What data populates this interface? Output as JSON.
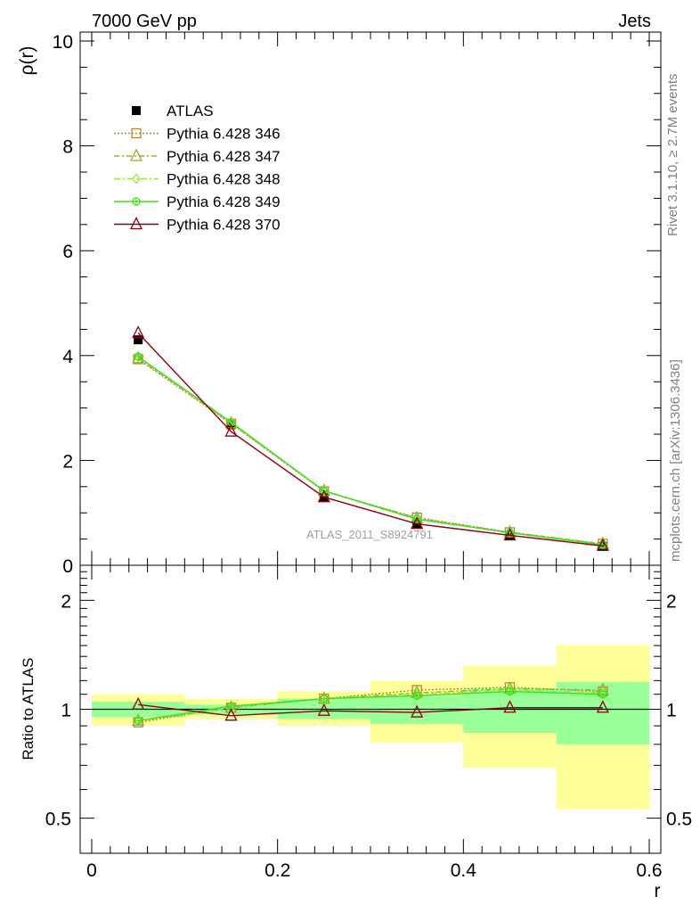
{
  "header": {
    "energy_label": "7000 GeV pp",
    "process_label": "Jets",
    "side_label_rivet": "Rivet 3.1.10, ≥ 2.7M events",
    "side_label_mcplots": "mcplots.cern.ch [arXiv:1306.3436]",
    "analysis_id": "ATLAS_2011_S8924791"
  },
  "colors": {
    "atlas": "#000000",
    "p346": "#b8853a",
    "p347": "#8db32a",
    "p348": "#9be43a",
    "p349": "#3de01c",
    "p370": "#8b0010",
    "band_inner": "#99ff99",
    "band_outer": "#ffff99"
  },
  "chart_data": [
    {
      "type": "line",
      "panel": "main",
      "xlabel": "",
      "ylabel": "ρ(r)",
      "xlim": [
        0,
        0.6
      ],
      "ylim": [
        0,
        10
      ],
      "yticks": [
        "0",
        "2",
        "4",
        "6",
        "8",
        "10"
      ],
      "legend_position": "top-left",
      "x": [
        0.05,
        0.15,
        0.25,
        0.35,
        0.45,
        0.55
      ],
      "series": [
        {
          "name": "ATLAS",
          "key": "atlas",
          "values": [
            4.3,
            2.68,
            1.29,
            0.8,
            0.56,
            0.36
          ]
        },
        {
          "name": "Pythia 6.428 346",
          "key": "p346",
          "values": [
            3.93,
            2.7,
            1.41,
            0.91,
            0.63,
            0.41
          ]
        },
        {
          "name": "Pythia 6.428 347",
          "key": "p347",
          "values": [
            3.95,
            2.71,
            1.42,
            0.9,
            0.63,
            0.41
          ]
        },
        {
          "name": "Pythia 6.428 348",
          "key": "p348",
          "values": [
            3.97,
            2.72,
            1.42,
            0.89,
            0.62,
            0.4
          ]
        },
        {
          "name": "Pythia 6.428 349",
          "key": "p349",
          "values": [
            3.98,
            2.73,
            1.42,
            0.88,
            0.62,
            0.39
          ]
        },
        {
          "name": "Pythia 6.428 370",
          "key": "p370",
          "values": [
            4.43,
            2.55,
            1.3,
            0.79,
            0.57,
            0.37
          ]
        }
      ]
    },
    {
      "type": "line",
      "panel": "ratio",
      "xlabel": "r",
      "ylabel": "Ratio to ATLAS",
      "xlim": [
        0,
        0.6
      ],
      "ylim": [
        0.4,
        2.5
      ],
      "log_y": true,
      "xticks": [
        "0",
        "0.2",
        "0.4",
        "0.6"
      ],
      "yticks": [
        "0.5",
        "1",
        "2"
      ],
      "x": [
        0.05,
        0.15,
        0.25,
        0.35,
        0.45,
        0.55
      ],
      "bands": [
        {
          "x_low": 0.0,
          "x_high": 0.1,
          "inner": [
            0.95,
            1.05
          ],
          "outer": [
            0.9,
            1.1
          ]
        },
        {
          "x_low": 0.1,
          "x_high": 0.2,
          "inner": [
            0.97,
            1.03
          ],
          "outer": [
            0.94,
            1.07
          ]
        },
        {
          "x_low": 0.2,
          "x_high": 0.3,
          "inner": [
            0.94,
            1.07
          ],
          "outer": [
            0.9,
            1.12
          ]
        },
        {
          "x_low": 0.3,
          "x_high": 0.4,
          "inner": [
            0.91,
            1.09
          ],
          "outer": [
            0.81,
            1.2
          ]
        },
        {
          "x_low": 0.4,
          "x_high": 0.5,
          "inner": [
            0.86,
            1.14
          ],
          "outer": [
            0.69,
            1.32
          ]
        },
        {
          "x_low": 0.5,
          "x_high": 0.6,
          "inner": [
            0.8,
            1.19
          ],
          "outer": [
            0.53,
            1.5
          ]
        }
      ],
      "series": [
        {
          "name": "Pythia 6.428 346",
          "key": "p346",
          "values": [
            0.92,
            1.01,
            1.07,
            1.13,
            1.15,
            1.12
          ]
        },
        {
          "name": "Pythia 6.428 347",
          "key": "p347",
          "values": [
            0.93,
            1.01,
            1.07,
            1.11,
            1.14,
            1.13
          ]
        },
        {
          "name": "Pythia 6.428 348",
          "key": "p348",
          "values": [
            0.93,
            1.01,
            1.07,
            1.1,
            1.13,
            1.11
          ]
        },
        {
          "name": "Pythia 6.428 349",
          "key": "p349",
          "values": [
            0.93,
            1.02,
            1.07,
            1.09,
            1.12,
            1.1
          ]
        },
        {
          "name": "Pythia 6.428 370",
          "key": "p370",
          "values": [
            1.03,
            0.96,
            0.99,
            0.98,
            1.01,
            1.01
          ]
        }
      ]
    }
  ]
}
